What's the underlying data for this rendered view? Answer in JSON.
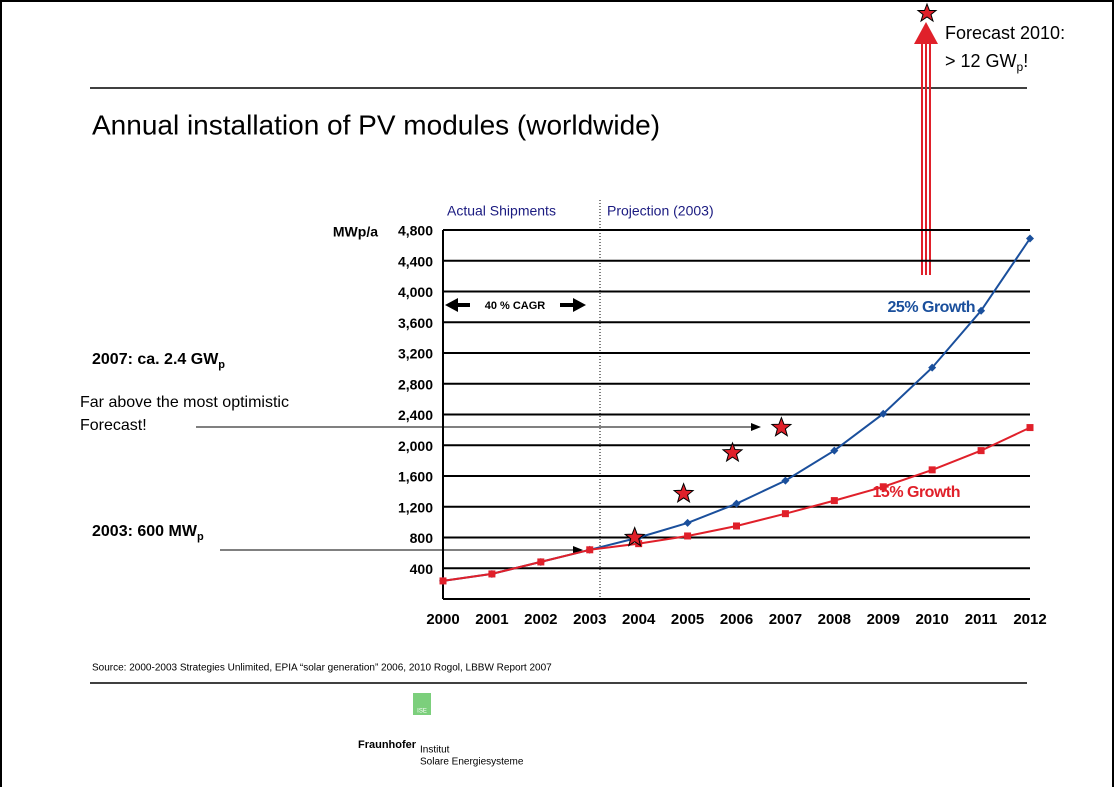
{
  "chart_data": {
    "type": "line",
    "title": "Annual installation of PV modules (worldwide)",
    "y_axis_label": "MWp/a",
    "section_labels": [
      "Actual Shipments",
      "Projection (2003)"
    ],
    "cagr_label": "40 % CAGR",
    "categories": [
      "2000",
      "2001",
      "2002",
      "2003",
      "2004",
      "2005",
      "2006",
      "2007",
      "2008",
      "2009",
      "2010",
      "2011",
      "2012"
    ],
    "series": [
      {
        "name": "25% Growth",
        "color": "#1a4f9c",
        "values": [
          235,
          326,
          482,
          640,
          800,
          990,
          1240,
          1540,
          1930,
          2410,
          3010,
          3750,
          4690
        ]
      },
      {
        "name": "15% Growth",
        "color": "#e0202a",
        "values": [
          235,
          326,
          482,
          640,
          720,
          820,
          950,
          1110,
          1280,
          1460,
          1680,
          1930,
          2230
        ]
      },
      {
        "color": "#e0202a",
        "values": [
          null,
          null,
          null,
          null,
          800,
          1370,
          1900,
          2230,
          null,
          null,
          null,
          null,
          null
        ]
      }
    ],
    "ylim": [
      0,
      4800
    ],
    "yticks": [
      {
        "value": 400,
        "label": "400"
      },
      {
        "value": 800,
        "label": "800"
      },
      {
        "value": 1200,
        "label": "1,200"
      },
      {
        "value": 1600,
        "label": "1,600"
      },
      {
        "value": 2000,
        "label": "2,000"
      },
      {
        "value": 2400,
        "label": "2,400"
      },
      {
        "value": 2800,
        "label": "2,800"
      },
      {
        "value": 3200,
        "label": "3,200"
      },
      {
        "value": 3600,
        "label": "3,600"
      },
      {
        "value": 4000,
        "label": "4,000"
      },
      {
        "value": 4400,
        "label": "4,400"
      },
      {
        "value": 4800,
        "label": "4,800"
      }
    ],
    "grid": true,
    "annotations": {
      "gw2007": {
        "text": "2007:  ca. 2.4 GW",
        "sub": "p"
      },
      "far_above": [
        "Far above the most optimistic",
        "Forecast!"
      ],
      "mw2003": {
        "text": "2003:  600 MW",
        "sub": "p"
      },
      "forecast2010": [
        "Forecast 2010:",
        {
          "text": "> 12 GW",
          "sub": "p",
          "tail": "!"
        }
      ]
    },
    "source": "Source: 2000-2003 Strategies Unlimited, EPIA “solar generation” 2006, 2010 Rogol, LBBW Report 2007"
  },
  "logo": {
    "badge": "ISE",
    "name": "Fraunhofer",
    "line1": "Institut",
    "line2": "Solare Energiesysteme"
  }
}
